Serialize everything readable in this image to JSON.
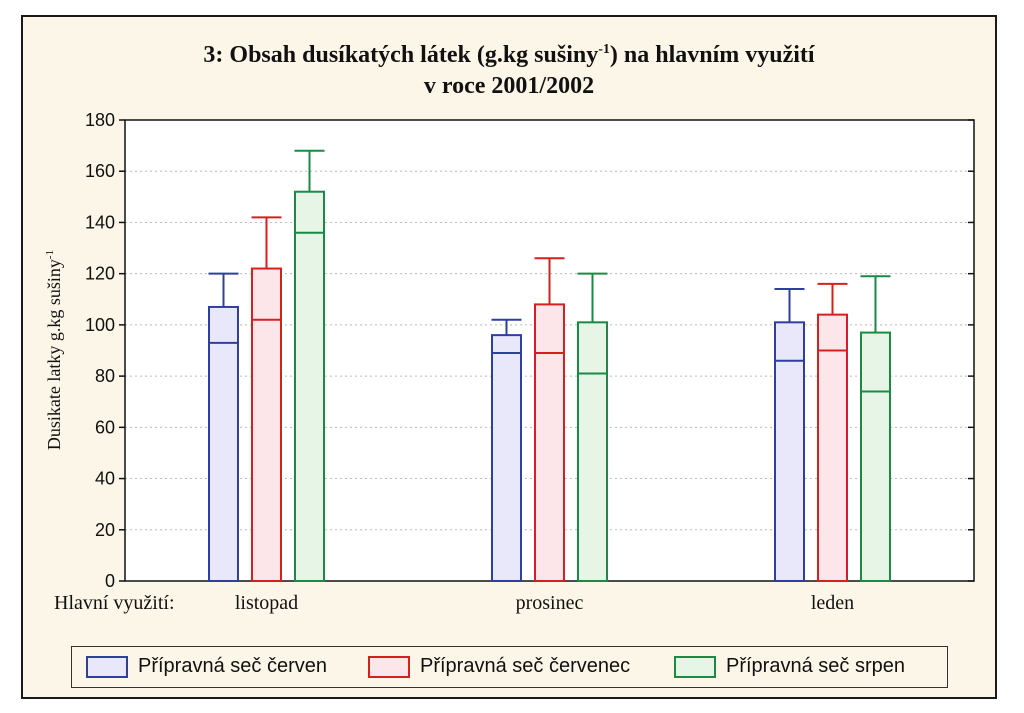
{
  "chart_data": {
    "type": "bar",
    "title_main": "3: Obsah dusíkatých látek (g.kg sušiny",
    "title_sup": "-1",
    "title_tail": ") na hlavním využití",
    "title_line2": "v roce 2001/2002",
    "ylabel_main": "Dusikate latky g.kg sušiny",
    "ylabel_sup": "-1",
    "xlabel": "Hlavní využití:",
    "categories": [
      "listopad",
      "prosinec",
      "leden"
    ],
    "ylim": [
      0,
      180
    ],
    "yticks": [
      0,
      20,
      40,
      60,
      80,
      100,
      120,
      140,
      160,
      180
    ],
    "grid": true,
    "legend_position": "bottom",
    "series": [
      {
        "name": "Přípravná seč červen",
        "color": "#2e3fa0",
        "fill": "#e8e8fa",
        "values": [
          107,
          96,
          101
        ],
        "box_low": [
          93,
          89,
          86
        ],
        "box_high": [
          107,
          96,
          101
        ],
        "whisker_high": [
          120,
          102,
          114
        ]
      },
      {
        "name": "Přípravná seč červenec",
        "color": "#d62020",
        "fill": "#fde6ea",
        "values": [
          122,
          108,
          104
        ],
        "box_low": [
          102,
          89,
          90
        ],
        "box_high": [
          122,
          108,
          104
        ],
        "whisker_high": [
          142,
          126,
          116
        ]
      },
      {
        "name": "Přípravná seč srpen",
        "color": "#1a8a45",
        "fill": "#e6f5e6",
        "values": [
          152,
          101,
          97
        ],
        "box_low": [
          136,
          81,
          74
        ],
        "box_high": [
          152,
          101,
          97
        ],
        "whisker_high": [
          168,
          120,
          119
        ]
      }
    ]
  }
}
